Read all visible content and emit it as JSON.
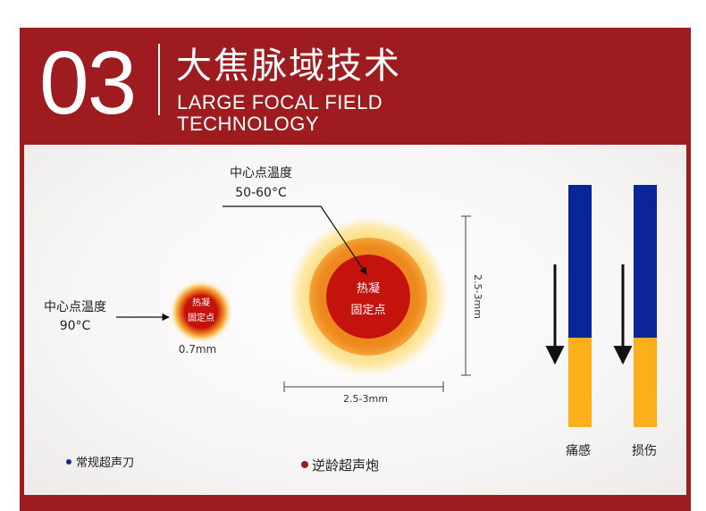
{
  "header": {
    "number": "03",
    "title_cn": "大焦脉域技术",
    "title_en_line1": "LARGE FOCAL FIELD",
    "title_en_line2": "TECHNOLOGY"
  },
  "small_spot": {
    "temp_label": "中心点温度",
    "temp_value": "90°C",
    "center_line1": "热凝",
    "center_line2": "固定点",
    "size_label": "0.7mm"
  },
  "large_spot": {
    "temp_label": "中心点温度",
    "temp_value": "50-60°C",
    "center_line1": "热凝",
    "center_line2": "固定点",
    "height_label": "2.5-3mm",
    "width_label": "2.5-3mm"
  },
  "legend": {
    "conventional": "常规超声刀",
    "conventional_color": "#1a2a8a",
    "reverse_age": "逆龄超声炮",
    "reverse_age_color": "#9e1c1f"
  },
  "bars": [
    {
      "label": "痛感",
      "blue_fraction": 0.63,
      "yellow_fraction": 0.37
    },
    {
      "label": "损伤",
      "blue_fraction": 0.63,
      "yellow_fraction": 0.37
    }
  ],
  "colors": {
    "frame_red": "#9e1c1f",
    "bar_blue": "#0a2596",
    "bar_yellow": "#fbb01b",
    "core_red": "#c4120d",
    "ring_orange": "#f08a1c",
    "halo_yellow": "#fce28a"
  }
}
